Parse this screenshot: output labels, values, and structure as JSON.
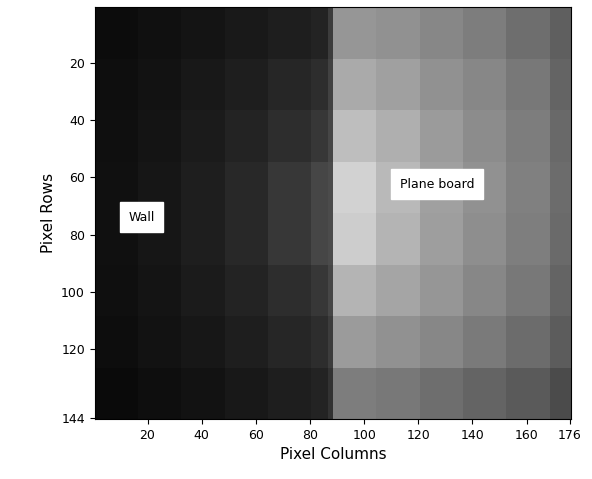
{
  "chart_data": {
    "type": "heatmap",
    "xlabel": "Pixel Columns",
    "ylabel": "Pixel Rows",
    "x": [
      0.5,
      16.5,
      32.5,
      48.5,
      64.5,
      80.5,
      86.5,
      88.5,
      104.5,
      120.5,
      136.5,
      152.5,
      168.5,
      176.5
    ],
    "y": [
      0.5,
      18.5,
      36.5,
      54.5,
      72.5,
      90.5,
      108.5,
      126.5,
      144.5
    ],
    "cells": [
      [
        12,
        16,
        20,
        25,
        30,
        35,
        60,
        150,
        145,
        135,
        125,
        110,
        95
      ],
      [
        14,
        18,
        24,
        30,
        38,
        45,
        65,
        170,
        160,
        145,
        135,
        120,
        100
      ],
      [
        15,
        20,
        27,
        35,
        45,
        55,
        70,
        190,
        175,
        155,
        140,
        125,
        105
      ],
      [
        16,
        22,
        30,
        40,
        55,
        70,
        75,
        210,
        185,
        160,
        145,
        128,
        108
      ],
      [
        16,
        22,
        30,
        40,
        55,
        70,
        75,
        205,
        180,
        158,
        142,
        126,
        106
      ],
      [
        15,
        20,
        27,
        35,
        45,
        55,
        70,
        180,
        165,
        150,
        135,
        120,
        100
      ],
      [
        13,
        18,
        23,
        30,
        38,
        45,
        60,
        155,
        145,
        135,
        122,
        108,
        92
      ],
      [
        10,
        14,
        18,
        24,
        30,
        35,
        50,
        125,
        120,
        110,
        100,
        90,
        75
      ]
    ],
    "clim": [
      0,
      255
    ],
    "xlim": [
      0.5,
      176.5
    ],
    "ylim": [
      144.5,
      0.5
    ],
    "xticks": [
      20,
      40,
      60,
      80,
      100,
      120,
      140,
      160,
      176
    ],
    "yticks": [
      20,
      40,
      60,
      80,
      100,
      120,
      144
    ],
    "annotations": [
      "Wall",
      "Plane board"
    ]
  }
}
